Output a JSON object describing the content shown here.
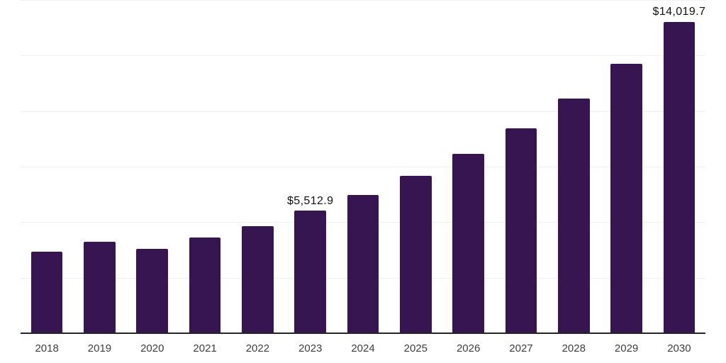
{
  "chart_data": {
    "type": "bar",
    "title": "",
    "xlabel": "",
    "ylabel": "",
    "categories": [
      "2018",
      "2019",
      "2020",
      "2021",
      "2022",
      "2023",
      "2024",
      "2025",
      "2026",
      "2027",
      "2028",
      "2029",
      "2030"
    ],
    "values": [
      3660,
      4110,
      3790,
      4320,
      4830,
      5512.9,
      6230,
      7090,
      8080,
      9220,
      10560,
      12140,
      14019.7
    ],
    "data_labels": {
      "2023": "$5,512.9",
      "2030": "$14,019.7"
    },
    "ylim": [
      0,
      15000
    ],
    "gridline_step": 2500,
    "grid": true,
    "legend": "none",
    "y_axis_labels_visible": false,
    "colors": {
      "bar": "#361551",
      "axis": "#262626",
      "gridline": "#f0f0f0",
      "tick_label": "#3d3d3d",
      "data_label": "#111111",
      "background": "#ffffff"
    }
  }
}
